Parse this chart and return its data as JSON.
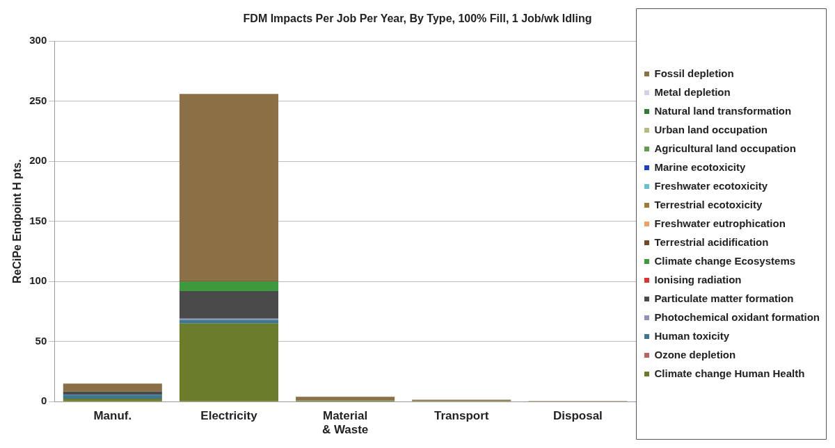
{
  "chart_data": {
    "type": "bar",
    "title": "FDM Impacts Per Job Per Year, By Type, 100% Fill, 1 Job/wk Idling",
    "ylabel": "ReCiPe Endpoint H pts.",
    "categories": [
      "Manuf.",
      "Electricity",
      "Material & Waste",
      "Transport",
      "Disposal"
    ],
    "stacked": true,
    "ylim": [
      0,
      300
    ],
    "yticks": [
      0,
      50,
      100,
      150,
      200,
      250,
      300
    ],
    "grid": "y",
    "legend": "right",
    "series": [
      {
        "name": "Climate change Human Health",
        "color": "#6b7d2a",
        "values": [
          2.5,
          65,
          1,
          0.5,
          null
        ]
      },
      {
        "name": "Ozone depletion",
        "color": "#c06060",
        "values": [
          0,
          0,
          0,
          0,
          0
        ]
      },
      {
        "name": "Human toxicity",
        "color": "#3c7890",
        "values": [
          3.3,
          3,
          0,
          0,
          0
        ]
      },
      {
        "name": "Photochemical oxidant formation",
        "color": "#9090b8",
        "values": [
          0,
          1,
          0,
          0,
          0
        ]
      },
      {
        "name": "Particulate matter formation",
        "color": "#4a4a4a",
        "values": [
          2.5,
          23,
          0,
          0,
          0
        ]
      },
      {
        "name": "Ionising radiation",
        "color": "#e03030",
        "values": [
          0,
          0,
          0,
          0,
          0
        ]
      },
      {
        "name": "Climate change Ecosystems",
        "color": "#3c9a3c",
        "values": [
          0,
          8,
          0,
          0,
          0
        ]
      },
      {
        "name": "Terrestrial acidification",
        "color": "#7a4422",
        "values": [
          0,
          1,
          0,
          0,
          0
        ]
      },
      {
        "name": "Freshwater eutrophication",
        "color": "#f0a060",
        "values": [
          0,
          0,
          0,
          0,
          0
        ]
      },
      {
        "name": "Terrestrial ecotoxicity",
        "color": "#a07838",
        "values": [
          0,
          0,
          0,
          0,
          0
        ]
      },
      {
        "name": "Freshwater ecotoxicity",
        "color": "#66c0d8",
        "values": [
          0,
          0,
          0,
          0,
          0
        ]
      },
      {
        "name": "Marine ecotoxicity",
        "color": "#1a3ecc",
        "values": [
          0,
          0,
          0,
          0,
          0
        ]
      },
      {
        "name": "Agricultural land occupation",
        "color": "#5a9e48",
        "values": [
          0,
          0,
          0,
          0,
          0
        ]
      },
      {
        "name": "Urban land occupation",
        "color": "#b8bb80",
        "values": [
          0,
          0,
          0,
          0,
          0
        ]
      },
      {
        "name": "Natural land transformation",
        "color": "#2e7d32",
        "values": [
          0,
          0,
          0,
          0,
          0
        ]
      },
      {
        "name": "Metal depletion",
        "color": "#d0d0e8",
        "values": [
          0,
          0,
          0,
          0,
          0
        ]
      },
      {
        "name": "Fossil depletion",
        "color": "#8b7045",
        "values": [
          6.7,
          155,
          3,
          1,
          0.5
        ]
      }
    ]
  }
}
